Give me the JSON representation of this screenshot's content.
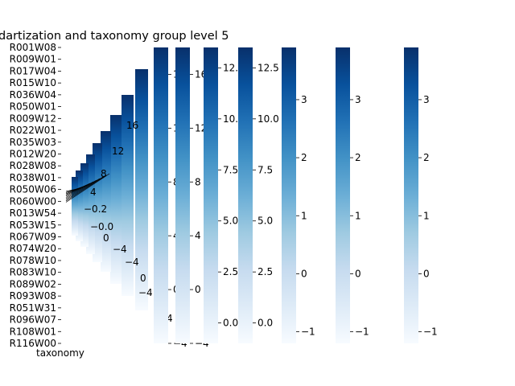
{
  "chart_data": {
    "type": "heatmap",
    "title": "dartization and taxonomy group level 5",
    "ylabel": "taxonomy",
    "colormap": "Blues",
    "row_labels": [
      "R001W08",
      "R009W01",
      "R017W04",
      "R015W10",
      "R036W04",
      "R050W01",
      "R009W12",
      "R022W01",
      "R035W03",
      "R012W20",
      "R028W08",
      "R038W01",
      "R050W06",
      "R060W00",
      "R013W54",
      "R053W15",
      "R067W09",
      "R074W20",
      "R078W10",
      "R083W10",
      "R089W02",
      "R093W08",
      "R051W31",
      "R096W07",
      "R108W01",
      "R116W00"
    ],
    "colorbars": [
      {
        "min": -4,
        "max": 18,
        "ticks": [
          "−4",
          "0",
          "4",
          "8",
          "12",
          "16"
        ]
      },
      {
        "min": -4,
        "max": 18,
        "ticks": [
          "−4",
          "0",
          "4",
          "8",
          "12",
          "16"
        ]
      },
      {
        "min": -4,
        "max": 18,
        "ticks": [
          "−4",
          "0",
          "4",
          "8",
          "12",
          "16"
        ]
      },
      {
        "min": -4,
        "max": 18,
        "ticks": [
          "−4",
          "0",
          "4",
          "8",
          "12",
          "16"
        ]
      },
      {
        "min": -4,
        "max": 18,
        "ticks": [
          "−4",
          "0",
          "4",
          "8",
          "12",
          "16"
        ]
      },
      {
        "min": -4,
        "max": 18,
        "ticks": [
          "−4",
          "0",
          "4",
          "8",
          "12",
          "16"
        ]
      },
      {
        "min": -1,
        "max": 13.5,
        "ticks": [
          "0.0",
          "2.5",
          "5.0",
          "7.5",
          "10.0",
          "12.5"
        ]
      },
      {
        "min": -1,
        "max": 13.5,
        "ticks": [
          "0.0",
          "2.5",
          "5.0",
          "7.5",
          "10.0",
          "12.5"
        ]
      },
      {
        "min": -1,
        "max": 13.5,
        "ticks": [
          "0.0",
          "2.5",
          "5.0",
          "7.5",
          "10.0",
          "12.5"
        ]
      },
      {
        "min": -1.2,
        "max": 3.9,
        "ticks": [
          "−1",
          "0",
          "1",
          "2",
          "3"
        ]
      },
      {
        "min": -1.2,
        "max": 3.9,
        "ticks": [
          "−1",
          "0",
          "1",
          "2",
          "3"
        ]
      },
      {
        "min": -1.2,
        "max": 3.9,
        "ticks": [
          "−1",
          "0",
          "1",
          "2",
          "3"
        ]
      }
    ],
    "small_colorbar_tick_labels": [
      "−0.2",
      "−0.0",
      "0.2",
      "4",
      "8",
      "12",
      "16"
    ]
  }
}
